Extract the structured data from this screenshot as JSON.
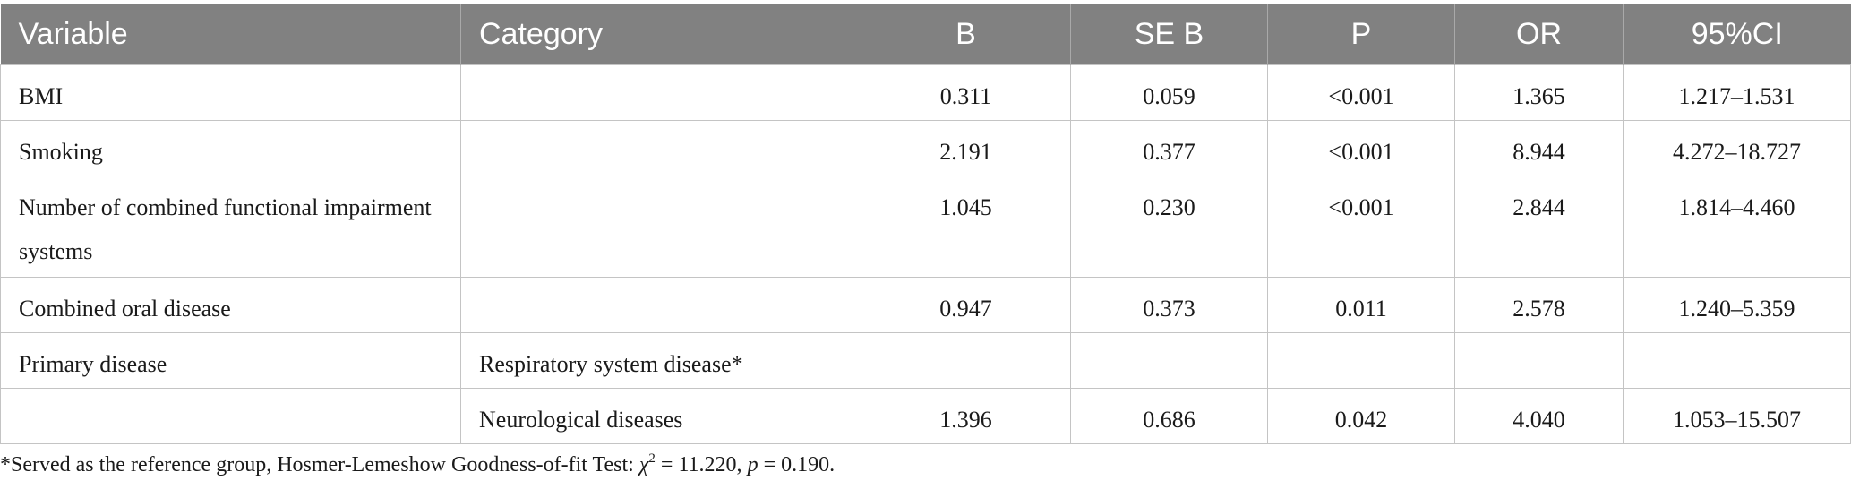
{
  "table": {
    "headers": [
      "Variable",
      "Category",
      "B",
      "SE B",
      "P",
      "OR",
      "95%CI"
    ],
    "rows": [
      {
        "variable": "BMI",
        "category": "",
        "b": "0.311",
        "se_b": "0.059",
        "p": "<0.001",
        "or": "1.365",
        "ci": "1.217–1.531"
      },
      {
        "variable": "Smoking",
        "category": "",
        "b": "2.191",
        "se_b": "0.377",
        "p": "<0.001",
        "or": "8.944",
        "ci": "4.272–18.727"
      },
      {
        "variable": "Number of combined functional impairment systems",
        "category": "",
        "b": "1.045",
        "se_b": "0.230",
        "p": "<0.001",
        "or": "2.844",
        "ci": "1.814–4.460"
      },
      {
        "variable": "Combined oral disease",
        "category": "",
        "b": "0.947",
        "se_b": "0.373",
        "p": "0.011",
        "or": "2.578",
        "ci": "1.240–5.359"
      },
      {
        "variable": "Primary disease",
        "category": "Respiratory system disease*",
        "b": "",
        "se_b": "",
        "p": "",
        "or": "",
        "ci": ""
      },
      {
        "variable": "",
        "category": "Neurological diseases",
        "b": "1.396",
        "se_b": "0.686",
        "p": "0.042",
        "or": "4.040",
        "ci": "1.053–15.507"
      }
    ]
  },
  "footnote": {
    "prefix": "*Served as the reference group, Hosmer-Lemeshow Goodness-of-fit Test: ",
    "chi_symbol": "χ",
    "chi_exponent": "2",
    "chi_value": " = 11.220, ",
    "p_symbol": "p",
    "p_value": " = 0.190."
  }
}
